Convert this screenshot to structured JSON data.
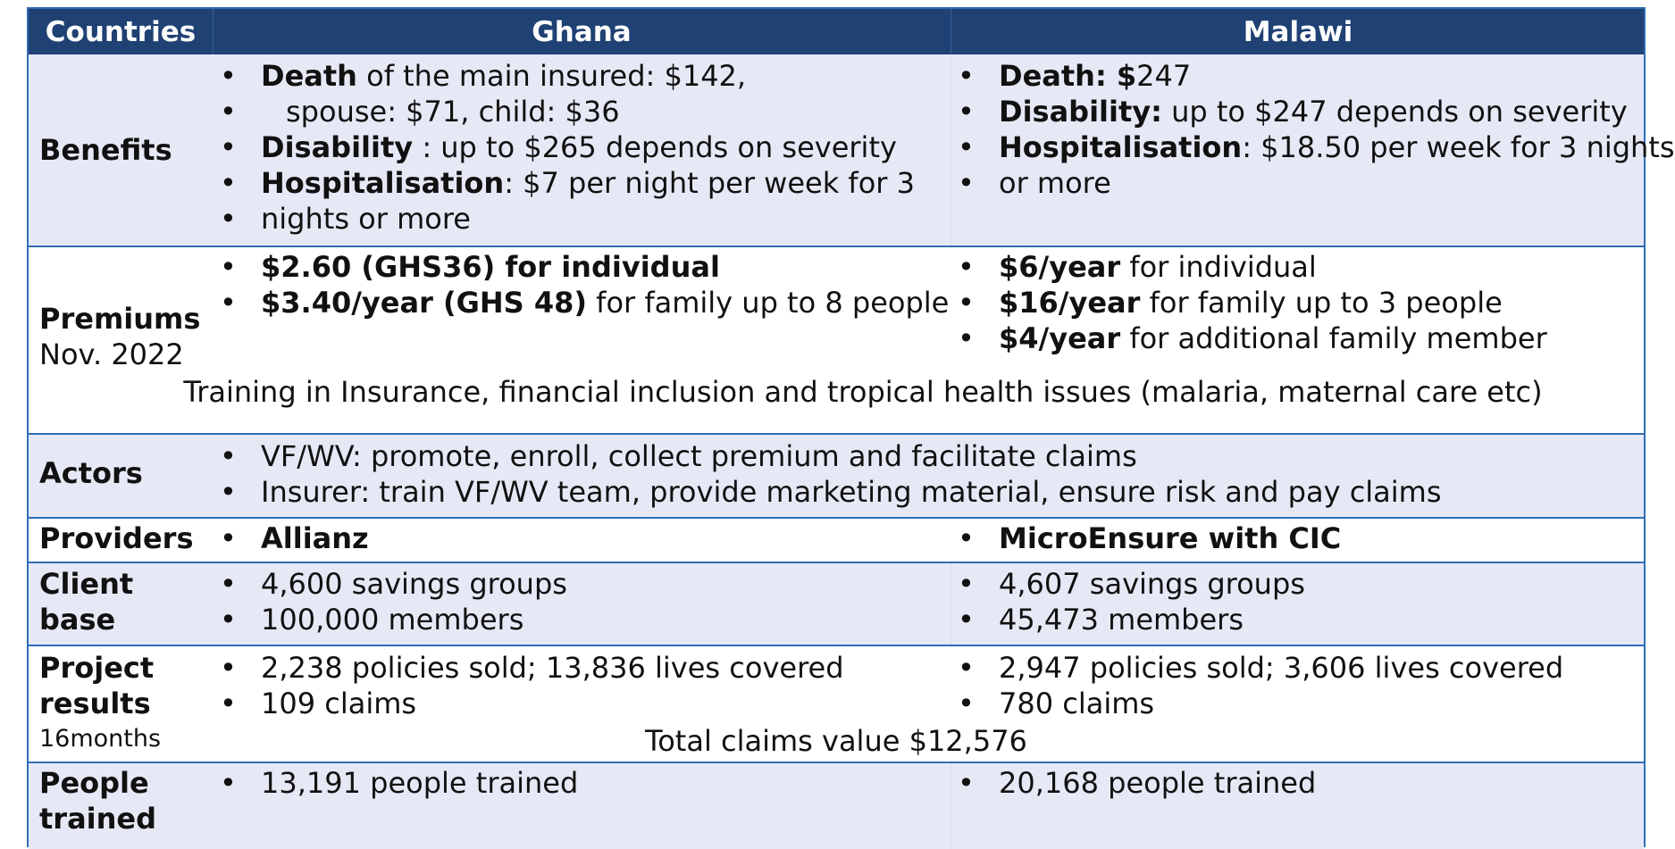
{
  "header": {
    "label_col": "Countries",
    "col1": "Ghana",
    "col2": "Malawi"
  },
  "benefits": {
    "label": "Benefits",
    "ghana": {
      "death_bold": "Death",
      "death_text": " of the main insured: $142,",
      "death_cont": "spouse: $71, child: $36",
      "disability_bold": "Disability",
      "disability_text": " : up to $265 depends on severity",
      "hosp_bold": "Hospitalisation",
      "hosp_text": ": $7 per night per week for 3",
      "hosp_cont": "nights or more"
    },
    "malawi": {
      "death_bold": "Death: $",
      "death_text": "247",
      "disability_bold": "Disability:",
      "disability_text": " up to $247 depends on severity",
      "hosp_bold": "Hospitalisation",
      "hosp_text": ": $18.50 per week for 3 nights",
      "hosp_cont": "or more"
    }
  },
  "premiums": {
    "label": "Premiums",
    "sublabel": "Nov. 2022",
    "ghana": {
      "p1_bold": "$2.60 (GHS36) for individual",
      "p2_bold": "$3.40/year (GHS 48)",
      "p2_text": " for family up to 8 people"
    },
    "malawi": {
      "p1_bold": "$6/year",
      "p1_text": " for individual",
      "p2_bold": "$16/year",
      "p2_text": " for family up to 3 people",
      "p3_bold": "$4/year",
      "p3_text": " for additional family member"
    },
    "training_note": "Training in Insurance, financial inclusion and tropical health issues (malaria, maternal care etc)"
  },
  "actors": {
    "label": "Actors",
    "items": [
      "VF/WV: promote, enroll, collect premium and facilitate claims",
      "Insurer: train VF/WV team, provide marketing material, ensure risk and pay claims"
    ]
  },
  "providers": {
    "label": "Providers",
    "ghana": "Allianz",
    "malawi": "MicroEnsure with CIC"
  },
  "client_base": {
    "label_line1": "Client",
    "label_line2": "base",
    "ghana": [
      "4,600 savings groups",
      "100,000 members"
    ],
    "malawi": [
      "4,607 savings groups",
      "45,473 members"
    ]
  },
  "project_results": {
    "label_line1": "Project",
    "label_line2": "results",
    "sublabel": "16months",
    "ghana": [
      "2,238 policies sold; 13,836 lives covered",
      "109 claims"
    ],
    "malawi": [
      "2,947 policies sold; 3,606 lives covered",
      "780 claims"
    ],
    "total": "Total claims value $12,576"
  },
  "people_trained": {
    "label_line1": "People",
    "label_line2": "trained",
    "ghana": "13,191 people trained",
    "malawi": "20,168 people trained"
  },
  "colors": {
    "header_bg": "#1f4173",
    "band_shaded": "#e6e9f5",
    "band_white": "#ffffff",
    "border": "#2e6db4"
  }
}
